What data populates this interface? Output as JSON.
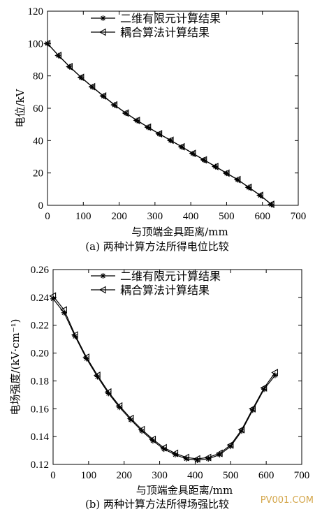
{
  "watermark": "PV001.COM",
  "chart_data": [
    {
      "type": "line",
      "caption": "(a) 两种计算方法所得电位比较",
      "xlabel": "与顶端金具距离/mm",
      "ylabel": "电位/kV",
      "xlim": [
        0,
        700
      ],
      "ylim": [
        0,
        120
      ],
      "xticks": [
        0,
        100,
        200,
        300,
        400,
        500,
        600,
        700
      ],
      "yticks": [
        0,
        20,
        40,
        60,
        80,
        100,
        120
      ],
      "grid": false,
      "legend_position": "top-center",
      "x": [
        0,
        31,
        62,
        94,
        125,
        156,
        187,
        219,
        250,
        281,
        312,
        344,
        375,
        406,
        437,
        469,
        500,
        531,
        562,
        594,
        625
      ],
      "series": [
        {
          "name": "二维有限元计算结果",
          "marker": "star",
          "values": [
            100,
            92.5,
            85.6,
            79.0,
            73.2,
            67.5,
            62.0,
            56.9,
            52.4,
            48.2,
            44.1,
            40.1,
            36.1,
            32.0,
            28.0,
            23.9,
            19.8,
            15.8,
            11.0,
            6.1,
            0.5
          ]
        },
        {
          "name": "耦合算法计算结果",
          "marker": "triangle-left",
          "values": [
            100,
            92.6,
            85.7,
            79.1,
            73.3,
            67.6,
            62.1,
            57.0,
            52.5,
            48.3,
            44.2,
            40.2,
            36.2,
            32.1,
            28.1,
            24.0,
            19.9,
            15.9,
            11.1,
            6.2,
            0.6
          ]
        }
      ]
    },
    {
      "type": "line",
      "caption": "(b) 两种计算方法所得场强比较",
      "xlabel": "与顶端金具距离/mm",
      "ylabel": "电场强度/(kV·cm⁻¹)",
      "xlim": [
        0,
        700
      ],
      "ylim": [
        0.12,
        0.26
      ],
      "xticks": [
        0,
        100,
        200,
        300,
        400,
        500,
        600,
        700
      ],
      "yticks": [
        "0.12",
        "0.14",
        "0.16",
        "0.18",
        "0.20",
        "0.22",
        "0.24",
        "0.26"
      ],
      "grid": false,
      "legend_position": "top-center",
      "x": [
        0,
        31,
        62,
        94,
        125,
        156,
        187,
        219,
        250,
        281,
        312,
        344,
        375,
        406,
        437,
        469,
        500,
        531,
        562,
        594,
        625
      ],
      "series": [
        {
          "name": "二维有限元计算结果",
          "marker": "star",
          "values": [
            0.239,
            0.229,
            0.212,
            0.196,
            0.183,
            0.171,
            0.161,
            0.152,
            0.144,
            0.137,
            0.131,
            0.127,
            0.124,
            0.123,
            0.124,
            0.127,
            0.133,
            0.144,
            0.159,
            0.174,
            0.184
          ]
        },
        {
          "name": "耦合算法计算结果",
          "marker": "triangle-left",
          "values": [
            0.241,
            0.231,
            0.213,
            0.197,
            0.184,
            0.172,
            0.162,
            0.153,
            0.145,
            0.138,
            0.132,
            0.128,
            0.125,
            0.124,
            0.125,
            0.128,
            0.134,
            0.145,
            0.16,
            0.175,
            0.186
          ]
        }
      ]
    }
  ]
}
